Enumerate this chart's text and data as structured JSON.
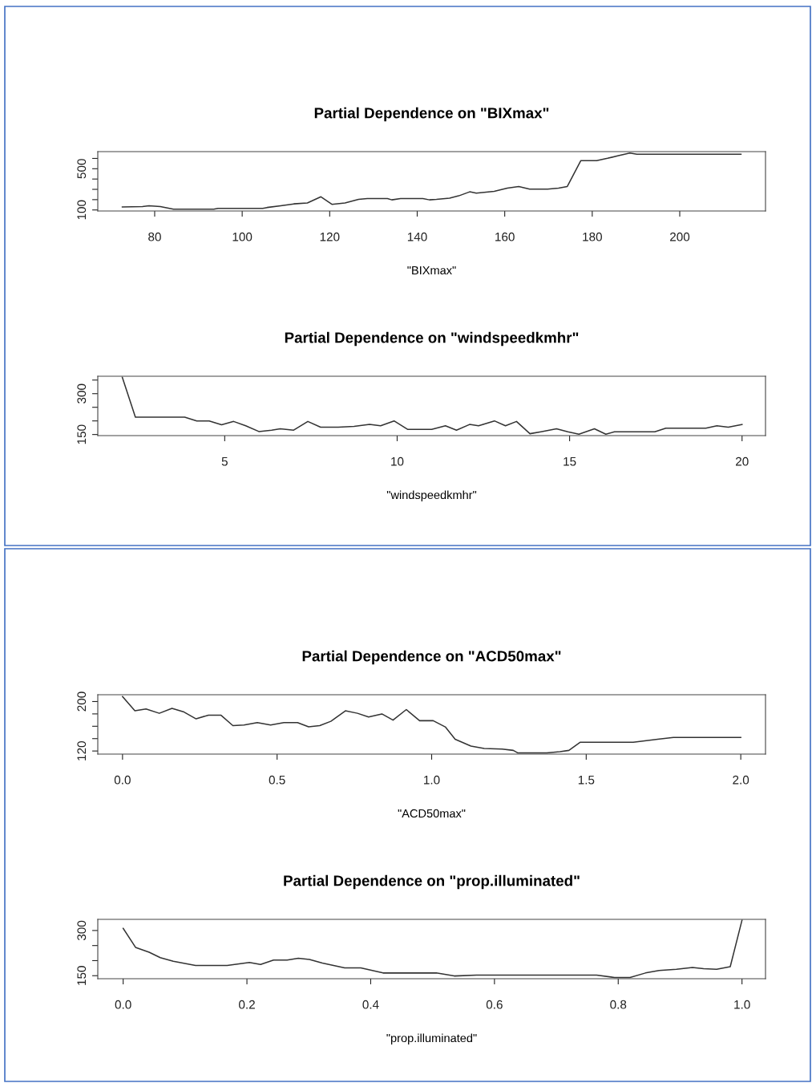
{
  "chart_data": [
    {
      "type": "line",
      "title": "Partial Dependence on \"BIXmax\"",
      "xlabel": "\"BIXmax\"",
      "xlim": [
        67,
        219.6
      ],
      "ylim": [
        90,
        666
      ],
      "xticks": [
        80,
        100,
        120,
        140,
        160,
        180,
        200
      ],
      "yticks": [
        100,
        {
          "value": 200,
          "label": null
        },
        {
          "value": 300,
          "label": null
        },
        {
          "value": 400,
          "label": null
        },
        500,
        {
          "value": 600,
          "label": null
        }
      ],
      "grid": false,
      "series": [
        {
          "color": "#333333",
          "x": [
            72.6,
            77.2,
            78.7,
            81.3,
            84.3,
            93.5,
            94.5,
            104.7,
            105.7,
            108.8,
            111.8,
            114.9,
            118,
            120.5,
            123.5,
            126.6,
            128.6,
            133.2,
            134.2,
            136.2,
            141.3,
            142.8,
            144.4,
            147.4,
            149.5,
            152,
            153.5,
            157.6,
            160.6,
            163.2,
            165.7,
            169.8,
            172.3,
            174.3,
            177.4,
            181,
            183.5,
            186,
            188.6,
            190.2,
            214
          ],
          "values": [
            129,
            133,
            141,
            133,
            107,
            107,
            116,
            116,
            124,
            141,
            159,
            168,
            228,
            155,
            168,
            202,
            211,
            211,
            198,
            211,
            211,
            198,
            202,
            215,
            237,
            276,
            263,
            280,
            311,
            328,
            302,
            302,
            311,
            328,
            579,
            579,
            601,
            627,
            653,
            640,
            640
          ]
        }
      ]
    },
    {
      "type": "line",
      "title": "Partial Dependence on \"windspeedkmhr\"",
      "xlabel": "\"windspeedkmhr\"",
      "xlim": [
        1.32,
        20.68
      ],
      "ylim": [
        146,
        364
      ],
      "xticks": [
        5,
        10,
        15,
        20
      ],
      "yticks": [
        150,
        {
          "value": 200,
          "label": null
        },
        {
          "value": 250,
          "label": null
        },
        300,
        {
          "value": 350,
          "label": null
        }
      ],
      "grid": false,
      "series": [
        {
          "color": "#333333",
          "x": [
            2.03,
            2.41,
            3.84,
            4.19,
            4.55,
            4.91,
            5.26,
            5.61,
            5.99,
            6.36,
            6.61,
            7.0,
            7.41,
            7.78,
            8.29,
            8.75,
            9.2,
            9.52,
            9.91,
            10.3,
            11.0,
            11.4,
            11.72,
            12.1,
            12.36,
            12.82,
            13.14,
            13.46,
            13.85,
            14.17,
            14.62,
            14.95,
            15.27,
            15.72,
            16.05,
            16.3,
            17.47,
            17.79,
            18.95,
            19.27,
            19.6,
            20.0
          ],
          "values": [
            360,
            214,
            214,
            200,
            200,
            186,
            198,
            182,
            161,
            166,
            171,
            166,
            198,
            177,
            177,
            180,
            187,
            182,
            200,
            169,
            169,
            182,
            166,
            187,
            182,
            200,
            182,
            198,
            153,
            160,
            171,
            160,
            151,
            171,
            151,
            160,
            160,
            173,
            173,
            182,
            177,
            187
          ]
        }
      ]
    },
    {
      "type": "line",
      "title": "Partial Dependence on \"ACD50max\"",
      "xlabel": "\"ACD50max\"",
      "xlim": [
        -0.08,
        2.08
      ],
      "ylim": [
        115,
        211
      ],
      "xticks": [
        {
          "value": 0,
          "label": "0.0"
        },
        0.5,
        {
          "value": 1,
          "label": "1.0"
        },
        1.5,
        {
          "value": 2,
          "label": "2.0"
        }
      ],
      "yticks": [
        120,
        {
          "value": 140,
          "label": null
        },
        {
          "value": 160,
          "label": null
        },
        {
          "value": 180,
          "label": null
        },
        200
      ],
      "grid": false,
      "series": [
        {
          "color": "#333333",
          "x": [
            0,
            0.04,
            0.076,
            0.119,
            0.16,
            0.199,
            0.238,
            0.278,
            0.318,
            0.357,
            0.393,
            0.436,
            0.479,
            0.522,
            0.566,
            0.602,
            0.638,
            0.674,
            0.721,
            0.76,
            0.796,
            0.839,
            0.875,
            0.918,
            0.961,
            1.005,
            1.044,
            1.076,
            1.127,
            1.17,
            1.228,
            1.264,
            1.278,
            1.372,
            1.415,
            1.444,
            1.48,
            1.652,
            1.731,
            1.782,
            2.0
          ],
          "values": [
            208,
            185,
            188,
            181,
            189,
            183,
            172,
            178,
            178,
            161,
            162,
            166,
            162,
            166,
            166,
            159,
            161,
            168,
            185,
            181,
            175,
            180,
            170,
            187,
            169,
            169,
            159,
            139,
            128,
            124,
            123,
            121,
            117,
            117,
            119,
            121,
            134,
            134,
            139,
            142,
            142
          ]
        }
      ]
    },
    {
      "type": "line",
      "title": "Partial Dependence on \"prop.illuminated\"",
      "xlabel": "\"prop.illuminated\"",
      "xlim": [
        -0.041,
        1.038
      ],
      "ylim": [
        140,
        337
      ],
      "xticks": [
        {
          "value": 0,
          "label": "0.0"
        },
        0.2,
        0.4,
        0.6,
        0.8,
        {
          "value": 1,
          "label": "1.0"
        }
      ],
      "yticks": [
        150,
        {
          "value": 200,
          "label": null
        },
        {
          "value": 250,
          "label": null
        },
        300
      ],
      "grid": false,
      "series": [
        {
          "color": "#333333",
          "x": [
            0,
            0.02,
            0.042,
            0.06,
            0.081,
            0.117,
            0.168,
            0.204,
            0.222,
            0.243,
            0.265,
            0.283,
            0.301,
            0.322,
            0.358,
            0.384,
            0.42,
            0.506,
            0.535,
            0.571,
            0.765,
            0.794,
            0.819,
            0.844,
            0.866,
            0.894,
            0.92,
            0.938,
            0.959,
            0.981,
            1.0
          ],
          "values": [
            307,
            244,
            228,
            210,
            198,
            184,
            184,
            194,
            187,
            202,
            202,
            208,
            204,
            192,
            176,
            176,
            159,
            159,
            149,
            152,
            152,
            144,
            144,
            159,
            167,
            171,
            177,
            173,
            171,
            180,
            334
          ]
        }
      ]
    }
  ]
}
